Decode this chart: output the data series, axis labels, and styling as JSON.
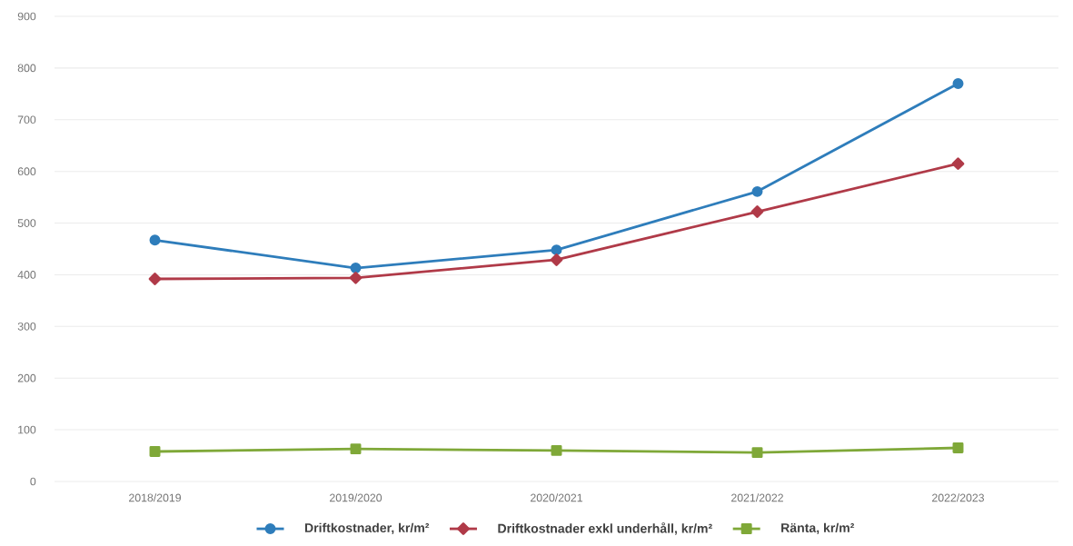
{
  "chart_data": {
    "type": "line",
    "categories": [
      "2018/2019",
      "2019/2020",
      "2020/2021",
      "2021/2022",
      "2022/2023"
    ],
    "series": [
      {
        "name": "Driftkostnader, kr/m²",
        "color": "#2e7dbb",
        "marker": "circle",
        "values": [
          467,
          413,
          448,
          561,
          770
        ]
      },
      {
        "name": "Driftkostnader exkl underhåll, kr/m²",
        "color": "#b03a48",
        "marker": "diamond",
        "values": [
          392,
          394,
          429,
          522,
          615
        ]
      },
      {
        "name": "Ränta, kr/m²",
        "color": "#7fa838",
        "marker": "square",
        "values": [
          58,
          63,
          60,
          56,
          65
        ]
      }
    ],
    "ylim": [
      0,
      900
    ],
    "yticks": [
      0,
      100,
      200,
      300,
      400,
      500,
      600,
      700,
      800,
      900
    ],
    "grid": "y",
    "legend": "bottom",
    "line_style": "solid"
  }
}
